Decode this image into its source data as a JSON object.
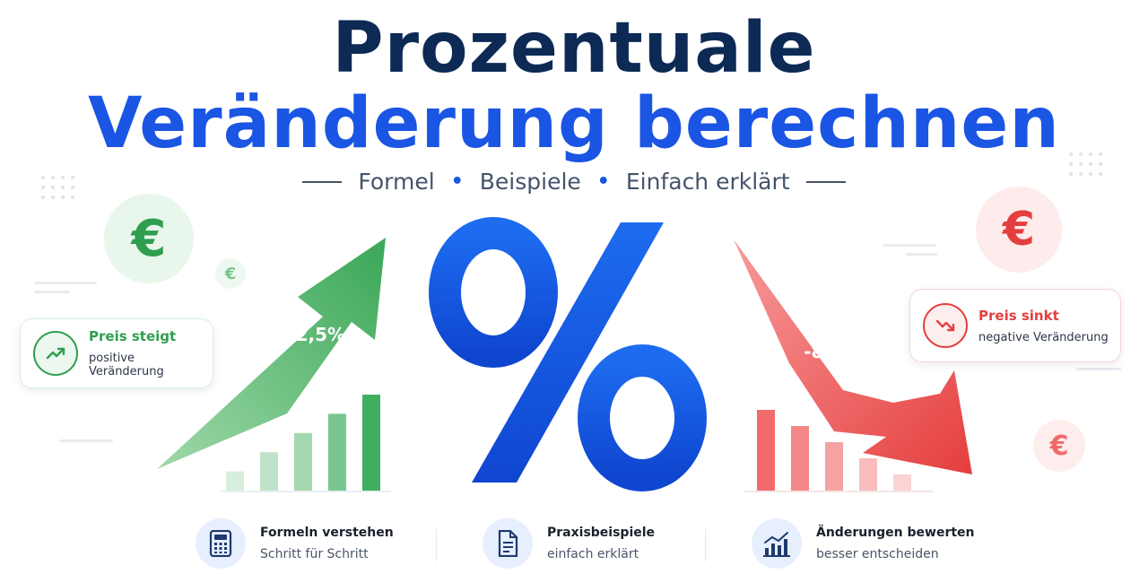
{
  "title": {
    "line1": "Prozentuale",
    "line2": "Veränderung berechnen"
  },
  "subtitle": {
    "items": [
      "Formel",
      "Beispiele",
      "Einfach erklärt"
    ],
    "separator": "•"
  },
  "symbols": {
    "euro": "€",
    "percent": "%"
  },
  "increase": {
    "value_label": "+12,5%",
    "card_title": "Preis steigt",
    "card_subtitle": "positive Veränderung",
    "color": "#2f9e4f",
    "icon": "trend-up-icon"
  },
  "decrease": {
    "value_label": "-8,3%",
    "card_title": "Preis sinkt",
    "card_subtitle": "negative Veränderung",
    "color": "#e53e3e",
    "icon": "trend-down-icon"
  },
  "features": [
    {
      "title": "Formeln verstehen",
      "subtitle": "Schritt für Schritt",
      "icon": "calculator-icon"
    },
    {
      "title": "Praxisbeispiele",
      "subtitle": "einfach erklärt",
      "icon": "document-icon"
    },
    {
      "title": "Änderungen bewerten",
      "subtitle": "besser entscheiden",
      "icon": "bar-chart-icon"
    }
  ],
  "colors": {
    "title_dark": "#0d2a55",
    "title_blue": "#1a55e3",
    "green": "#2f9e4f",
    "red": "#e53e3e"
  },
  "chart_data": [
    {
      "type": "bar",
      "series": [
        {
          "values": [
            1,
            2,
            3,
            4,
            5
          ]
        }
      ]
    },
    {
      "type": "bar",
      "series": [
        {
          "values": [
            5,
            4,
            3,
            2,
            1
          ]
        }
      ]
    }
  ]
}
